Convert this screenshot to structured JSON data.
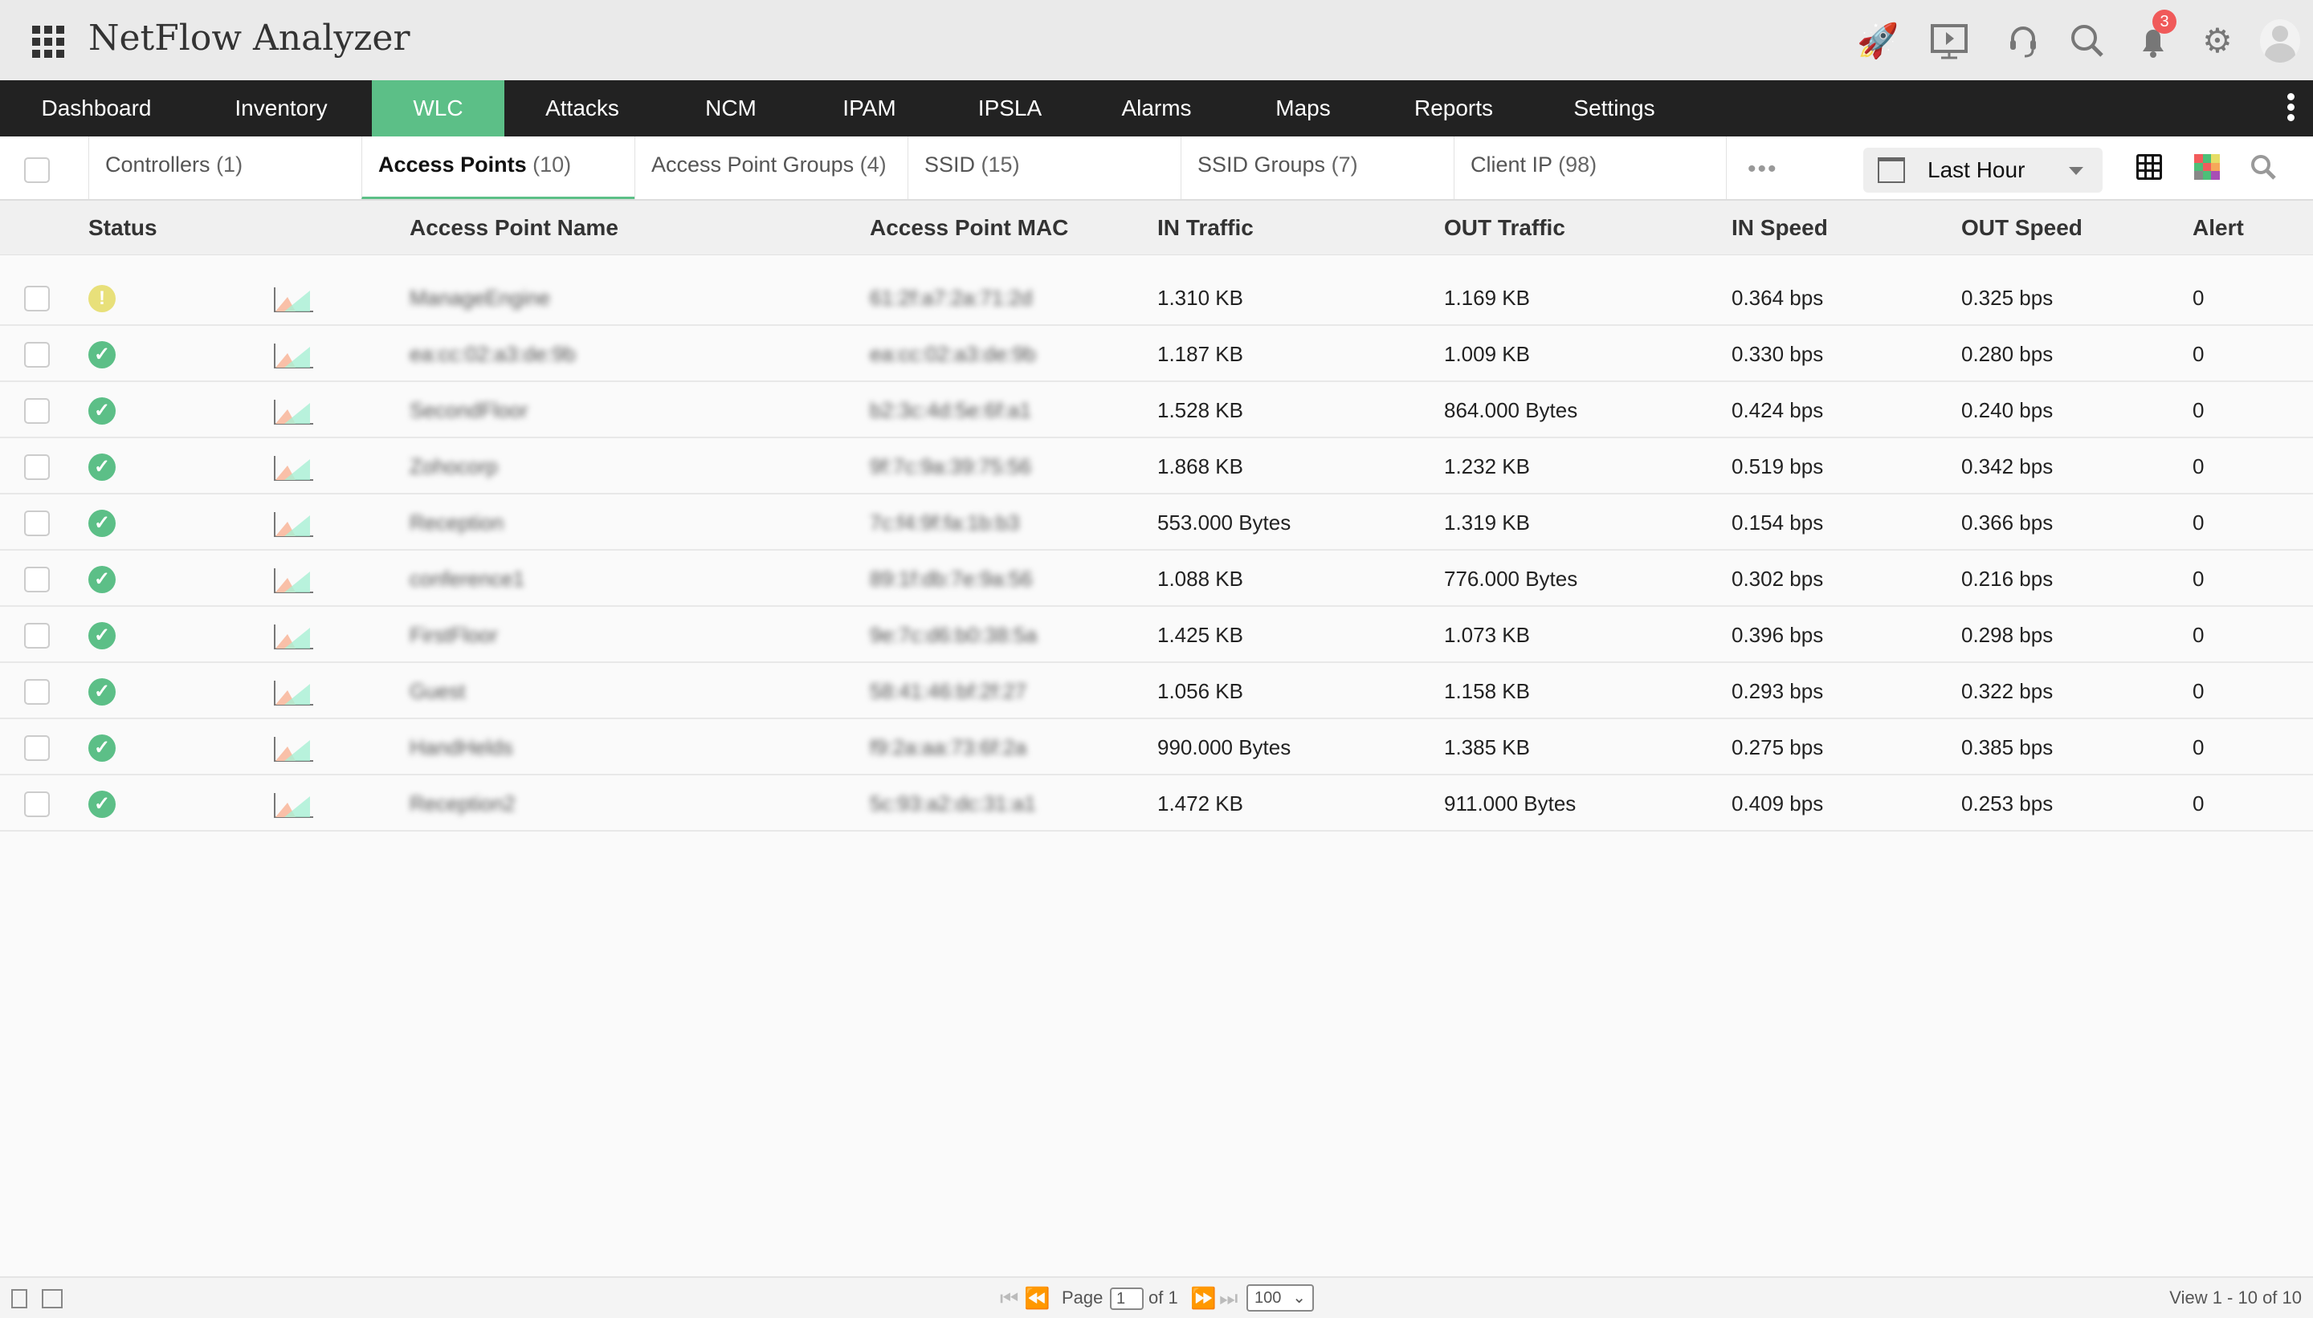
{
  "app": {
    "title": "NetFlow Analyzer",
    "notification_count": "3"
  },
  "header_icons": [
    "rocket-icon",
    "presentation-icon",
    "headset-icon",
    "search-icon",
    "bell-icon",
    "gear-icon",
    "user-avatar-icon"
  ],
  "nav": [
    {
      "label": "Dashboard"
    },
    {
      "label": "Inventory"
    },
    {
      "label": "WLC",
      "active": true
    },
    {
      "label": "Attacks"
    },
    {
      "label": "NCM"
    },
    {
      "label": "IPAM"
    },
    {
      "label": "IPSLA"
    },
    {
      "label": "Alarms"
    },
    {
      "label": "Maps"
    },
    {
      "label": "Reports"
    },
    {
      "label": "Settings"
    }
  ],
  "tabs": [
    {
      "label": "Controllers",
      "count": "(1)"
    },
    {
      "label": "Access Points",
      "count": "(10)",
      "selected": true
    },
    {
      "label": "Access Point Groups",
      "count": "(4)"
    },
    {
      "label": "SSID",
      "count": "(15)"
    },
    {
      "label": "SSID Groups",
      "count": "(7)"
    },
    {
      "label": "Client IP",
      "count": "(98)"
    }
  ],
  "toolbar": {
    "more": "•••",
    "period": "Last Hour"
  },
  "colors": {
    "accent": "#5cbf87",
    "nav_bg": "#222222",
    "ok": "#5cbf87",
    "warning": "#e8e07a",
    "badge": "#f05a5a"
  },
  "table": {
    "columns": [
      "Status",
      "Access Point Name",
      "Access Point MAC",
      "IN Traffic",
      "OUT Traffic",
      "IN Speed",
      "OUT Speed",
      "Alert"
    ],
    "rows": [
      {
        "status": "warning",
        "name": "ManageEngine",
        "mac": "61:2f:a7:2a:71:2d",
        "in": "1.310 KB",
        "out": "1.169 KB",
        "in_speed": "0.364 bps",
        "out_speed": "0.325 bps",
        "alert": "0"
      },
      {
        "status": "ok",
        "name": "ea:cc:02:a3:de:9b",
        "mac": "ea:cc:02:a3:de:9b",
        "in": "1.187 KB",
        "out": "1.009 KB",
        "in_speed": "0.330 bps",
        "out_speed": "0.280 bps",
        "alert": "0"
      },
      {
        "status": "ok",
        "name": "SecondFloor",
        "mac": "b2:3c:4d:5e:6f:a1",
        "in": "1.528 KB",
        "out": "864.000 Bytes",
        "in_speed": "0.424 bps",
        "out_speed": "0.240 bps",
        "alert": "0"
      },
      {
        "status": "ok",
        "name": "Zohocorp",
        "mac": "9f:7c:9a:39:75:56",
        "in": "1.868 KB",
        "out": "1.232 KB",
        "in_speed": "0.519 bps",
        "out_speed": "0.342 bps",
        "alert": "0"
      },
      {
        "status": "ok",
        "name": "Reception",
        "mac": "7c:f4:9f:fa:1b:b3",
        "in": "553.000 Bytes",
        "out": "1.319 KB",
        "in_speed": "0.154 bps",
        "out_speed": "0.366 bps",
        "alert": "0"
      },
      {
        "status": "ok",
        "name": "conference1",
        "mac": "89:1f:db:7e:9a:56",
        "in": "1.088 KB",
        "out": "776.000 Bytes",
        "in_speed": "0.302 bps",
        "out_speed": "0.216 bps",
        "alert": "0"
      },
      {
        "status": "ok",
        "name": "FirstFloor",
        "mac": "9e:7c:d6:b0:38:5a",
        "in": "1.425 KB",
        "out": "1.073 KB",
        "in_speed": "0.396 bps",
        "out_speed": "0.298 bps",
        "alert": "0"
      },
      {
        "status": "ok",
        "name": "Guest",
        "mac": "58:41:46:bf:2f:27",
        "in": "1.056 KB",
        "out": "1.158 KB",
        "in_speed": "0.293 bps",
        "out_speed": "0.322 bps",
        "alert": "0"
      },
      {
        "status": "ok",
        "name": "HandHelds",
        "mac": "f9:2a:aa:73:6f:2a",
        "in": "990.000 Bytes",
        "out": "1.385 KB",
        "in_speed": "0.275 bps",
        "out_speed": "0.385 bps",
        "alert": "0"
      },
      {
        "status": "ok",
        "name": "Reception2",
        "mac": "5c:93:a2:dc:31:a1",
        "in": "1.472 KB",
        "out": "911.000 Bytes",
        "in_speed": "0.409 bps",
        "out_speed": "0.253 bps",
        "alert": "0"
      }
    ]
  },
  "footer": {
    "page_label": "Page",
    "page": "1",
    "of": "of 1",
    "page_size": "100",
    "view": "View 1 - 10 of 10"
  }
}
